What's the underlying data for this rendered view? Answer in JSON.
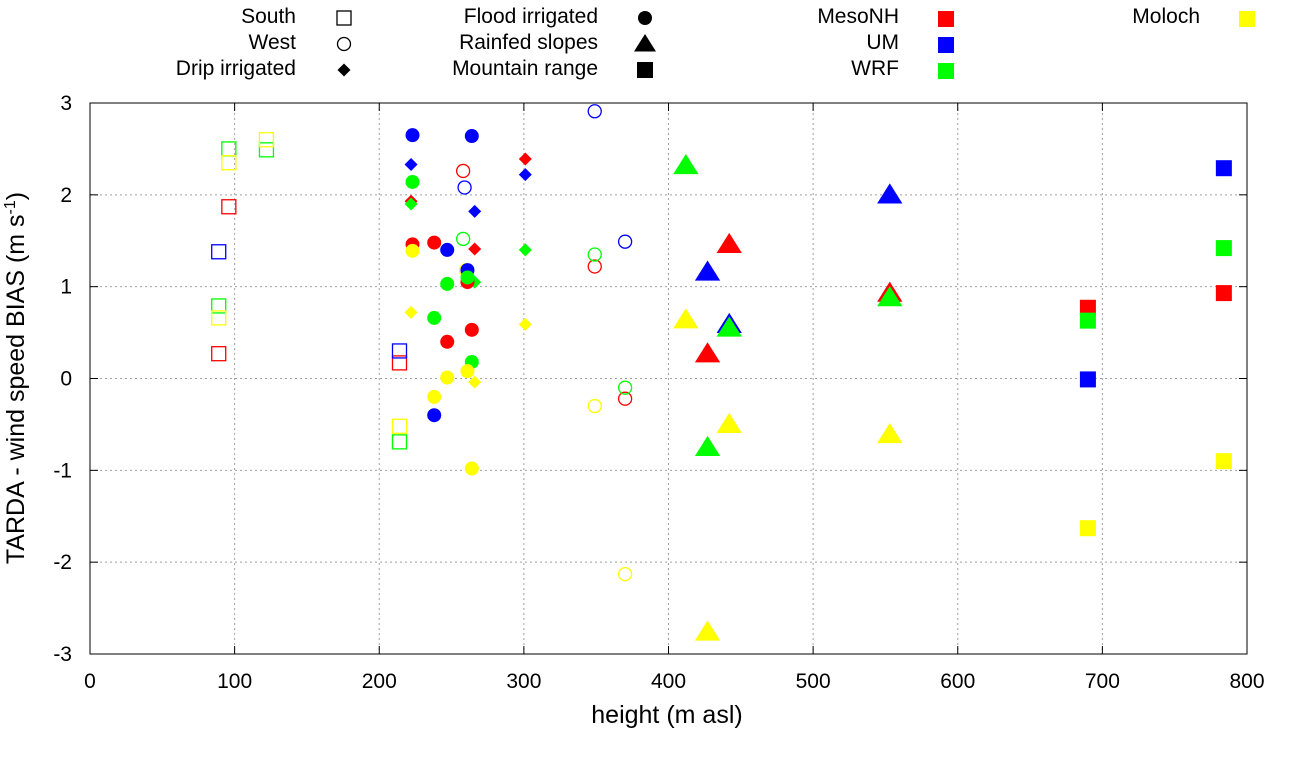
{
  "chart_data": {
    "type": "scatter",
    "xlabel": "height (m asl)",
    "ylabel": "TARDA - wind speed BIAS (m s",
    "ylabel_sup": "-1",
    "ylabel_close": ")",
    "xlim": [
      0,
      800
    ],
    "ylim": [
      -3,
      3
    ],
    "xticks": [
      0,
      100,
      200,
      300,
      400,
      500,
      600,
      700,
      800
    ],
    "yticks": [
      -3,
      -2,
      -1,
      0,
      1,
      2,
      3
    ],
    "grid": true,
    "legend_position": "top",
    "colors": {
      "MesoNH": "#ff0000",
      "UM": "#0000ff",
      "WRF": "#00ff00",
      "Moloch": "#ffff00"
    },
    "legend": {
      "sites": [
        {
          "label": "South",
          "marker": "open-square"
        },
        {
          "label": "West",
          "marker": "open-circle"
        },
        {
          "label": "Drip irrigated",
          "marker": "filled-diamond"
        },
        {
          "label": "Flood irrigated",
          "marker": "filled-circle"
        },
        {
          "label": "Rainfed slopes",
          "marker": "filled-triangle"
        },
        {
          "label": "Mountain range",
          "marker": "filled-square"
        }
      ],
      "models": [
        {
          "label": "MesoNH",
          "color": "#ff0000"
        },
        {
          "label": "UM",
          "color": "#0000ff"
        },
        {
          "label": "WRF",
          "color": "#00ff00"
        },
        {
          "label": "Moloch",
          "color": "#ffff00"
        }
      ]
    },
    "series": [
      {
        "name": "MesoNH",
        "site": "South",
        "marker": "open-square",
        "color": "#ff0000",
        "points": [
          [
            89,
            0.27
          ],
          [
            96,
            1.87
          ],
          [
            214,
            0.17
          ]
        ]
      },
      {
        "name": "UM",
        "site": "South",
        "marker": "open-square",
        "color": "#0000ff",
        "points": [
          [
            89,
            1.38
          ],
          [
            214,
            0.3
          ]
        ]
      },
      {
        "name": "WRF",
        "site": "South",
        "marker": "open-square",
        "color": "#00ff00",
        "points": [
          [
            89,
            0.79
          ],
          [
            96,
            2.5
          ],
          [
            122,
            2.49
          ],
          [
            214,
            -0.69
          ]
        ]
      },
      {
        "name": "Moloch",
        "site": "South",
        "marker": "open-square",
        "color": "#ffff00",
        "points": [
          [
            89,
            0.66
          ],
          [
            96,
            2.35
          ],
          [
            122,
            2.6
          ],
          [
            214,
            -0.52
          ]
        ]
      },
      {
        "name": "MesoNH",
        "site": "West",
        "marker": "open-circle",
        "color": "#ff0000",
        "points": [
          [
            258,
            2.26
          ],
          [
            349,
            1.22
          ],
          [
            370,
            -0.22
          ]
        ]
      },
      {
        "name": "UM",
        "site": "West",
        "marker": "open-circle",
        "color": "#0000ff",
        "points": [
          [
            259,
            2.08
          ],
          [
            349,
            2.91
          ],
          [
            370,
            1.49
          ]
        ]
      },
      {
        "name": "WRF",
        "site": "West",
        "marker": "open-circle",
        "color": "#00ff00",
        "points": [
          [
            258,
            1.52
          ],
          [
            349,
            1.35
          ],
          [
            370,
            -0.1
          ]
        ]
      },
      {
        "name": "Moloch",
        "site": "West",
        "marker": "open-circle",
        "color": "#ffff00",
        "points": [
          [
            260,
            1.18
          ],
          [
            349,
            -0.3
          ],
          [
            370,
            -2.13
          ]
        ]
      },
      {
        "name": "MesoNH",
        "site": "Drip irrigated",
        "marker": "filled-diamond",
        "color": "#ff0000",
        "points": [
          [
            222,
            1.93
          ],
          [
            266,
            1.41
          ],
          [
            301,
            2.39
          ]
        ]
      },
      {
        "name": "UM",
        "site": "Drip irrigated",
        "marker": "filled-diamond",
        "color": "#0000ff",
        "points": [
          [
            222,
            2.33
          ],
          [
            266,
            1.82
          ],
          [
            301,
            2.22
          ]
        ]
      },
      {
        "name": "WRF",
        "site": "Drip irrigated",
        "marker": "filled-diamond",
        "color": "#00ff00",
        "points": [
          [
            222,
            1.9
          ],
          [
            266,
            1.05
          ],
          [
            301,
            1.4
          ]
        ]
      },
      {
        "name": "Moloch",
        "site": "Drip irrigated",
        "marker": "filled-diamond",
        "color": "#ffff00",
        "points": [
          [
            222,
            0.72
          ],
          [
            266,
            -0.04
          ],
          [
            301,
            0.59
          ]
        ]
      },
      {
        "name": "MesoNH",
        "site": "Flood irrigated",
        "marker": "filled-circle",
        "color": "#ff0000",
        "points": [
          [
            223,
            1.46
          ],
          [
            238,
            1.48
          ],
          [
            247,
            0.4
          ],
          [
            261,
            1.05
          ],
          [
            264,
            0.53
          ]
        ]
      },
      {
        "name": "UM",
        "site": "Flood irrigated",
        "marker": "filled-circle",
        "color": "#0000ff",
        "points": [
          [
            223,
            2.65
          ],
          [
            238,
            -0.4
          ],
          [
            247,
            1.4
          ],
          [
            261,
            1.18
          ],
          [
            264,
            2.64
          ]
        ]
      },
      {
        "name": "WRF",
        "site": "Flood irrigated",
        "marker": "filled-circle",
        "color": "#00ff00",
        "points": [
          [
            223,
            2.14
          ],
          [
            238,
            0.66
          ],
          [
            247,
            1.03
          ],
          [
            261,
            1.1
          ],
          [
            264,
            0.18
          ]
        ]
      },
      {
        "name": "Moloch",
        "site": "Flood irrigated",
        "marker": "filled-circle",
        "color": "#ffff00",
        "points": [
          [
            223,
            1.39
          ],
          [
            238,
            -0.2
          ],
          [
            247,
            0.01
          ],
          [
            261,
            0.08
          ],
          [
            264,
            -0.98
          ]
        ]
      },
      {
        "name": "MesoNH",
        "site": "Rainfed slopes",
        "marker": "filled-triangle",
        "color": "#ff0000",
        "points": [
          [
            427,
            0.27
          ],
          [
            442,
            1.46
          ],
          [
            553,
            0.93
          ]
        ]
      },
      {
        "name": "UM",
        "site": "Rainfed slopes",
        "marker": "filled-triangle",
        "color": "#0000ff",
        "points": [
          [
            427,
            1.16
          ],
          [
            442,
            0.59
          ],
          [
            553,
            2.0
          ]
        ]
      },
      {
        "name": "WRF",
        "site": "Rainfed slopes",
        "marker": "filled-triangle",
        "color": "#00ff00",
        "points": [
          [
            412,
            2.32
          ],
          [
            427,
            -0.75
          ],
          [
            442,
            0.55
          ],
          [
            553,
            0.88
          ]
        ]
      },
      {
        "name": "Moloch",
        "site": "Rainfed slopes",
        "marker": "filled-triangle",
        "color": "#ffff00",
        "points": [
          [
            412,
            0.64
          ],
          [
            427,
            -2.76
          ],
          [
            442,
            -0.5
          ],
          [
            553,
            -0.61
          ]
        ]
      },
      {
        "name": "MesoNH",
        "site": "Mountain range",
        "marker": "filled-square",
        "color": "#ff0000",
        "points": [
          [
            690,
            0.77
          ],
          [
            784,
            0.93
          ]
        ]
      },
      {
        "name": "UM",
        "site": "Mountain range",
        "marker": "filled-square",
        "color": "#0000ff",
        "points": [
          [
            690,
            -0.01
          ],
          [
            784,
            2.29
          ]
        ]
      },
      {
        "name": "WRF",
        "site": "Mountain range",
        "marker": "filled-square",
        "color": "#00ff00",
        "points": [
          [
            690,
            0.63
          ],
          [
            784,
            1.42
          ]
        ]
      },
      {
        "name": "Moloch",
        "site": "Mountain range",
        "marker": "filled-square",
        "color": "#ffff00",
        "points": [
          [
            690,
            -1.63
          ],
          [
            784,
            -0.9
          ]
        ]
      }
    ]
  }
}
